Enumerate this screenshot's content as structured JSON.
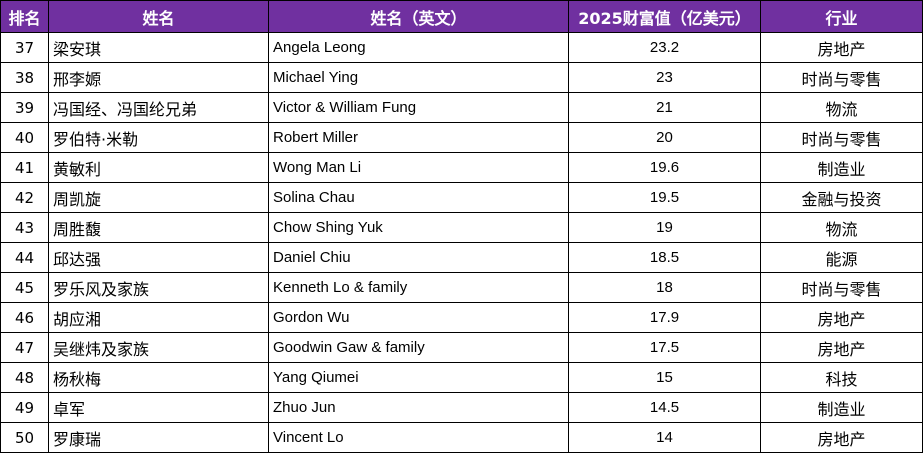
{
  "table": {
    "headers": {
      "rank": "排名",
      "name_cn": "姓名",
      "name_en": "姓名（英文）",
      "wealth": "2025财富值（亿美元）",
      "industry": "行业"
    },
    "header_color": "#7030A0",
    "rows": [
      {
        "rank": "37",
        "name_cn": "梁安琪",
        "name_en": "Angela Leong",
        "wealth": "23.2",
        "industry": "房地产"
      },
      {
        "rank": "38",
        "name_cn": "邢李嫄",
        "name_en": "Michael Ying",
        "wealth": "23",
        "industry": "时尚与零售"
      },
      {
        "rank": "39",
        "name_cn": "冯国经、冯国纶兄弟",
        "name_en": "Victor & William Fung",
        "wealth": "21",
        "industry": "物流"
      },
      {
        "rank": "40",
        "name_cn": "罗伯特·米勒",
        "name_en": "Robert Miller",
        "wealth": "20",
        "industry": "时尚与零售"
      },
      {
        "rank": "41",
        "name_cn": "黄敏利",
        "name_en": "Wong Man Li",
        "wealth": "19.6",
        "industry": "制造业"
      },
      {
        "rank": "42",
        "name_cn": "周凯旋",
        "name_en": "Solina Chau",
        "wealth": "19.5",
        "industry": "金融与投资"
      },
      {
        "rank": "43",
        "name_cn": "周胜馥",
        "name_en": "Chow Shing Yuk",
        "wealth": "19",
        "industry": "物流"
      },
      {
        "rank": "44",
        "name_cn": "邱达强",
        "name_en": "Daniel Chiu",
        "wealth": "18.5",
        "industry": "能源"
      },
      {
        "rank": "45",
        "name_cn": "罗乐风及家族",
        "name_en": "Kenneth Lo & family",
        "wealth": "18",
        "industry": "时尚与零售"
      },
      {
        "rank": "46",
        "name_cn": "胡应湘",
        "name_en": "Gordon Wu",
        "wealth": "17.9",
        "industry": "房地产"
      },
      {
        "rank": "47",
        "name_cn": "吴继炜及家族",
        "name_en": "Goodwin Gaw & family",
        "wealth": "17.5",
        "industry": "房地产"
      },
      {
        "rank": "48",
        "name_cn": "杨秋梅",
        "name_en": "Yang Qiumei",
        "wealth": "15",
        "industry": "科技"
      },
      {
        "rank": "49",
        "name_cn": "卓军",
        "name_en": "Zhuo Jun",
        "wealth": "14.5",
        "industry": "制造业"
      },
      {
        "rank": "50",
        "name_cn": "罗康瑞",
        "name_en": "Vincent Lo",
        "wealth": "14",
        "industry": "房地产"
      }
    ]
  }
}
